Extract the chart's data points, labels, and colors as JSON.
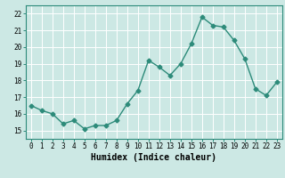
{
  "x": [
    0,
    1,
    2,
    3,
    4,
    5,
    6,
    7,
    8,
    9,
    10,
    11,
    12,
    13,
    14,
    15,
    16,
    17,
    18,
    19,
    20,
    21,
    22,
    23
  ],
  "y": [
    16.5,
    16.2,
    16.0,
    15.4,
    15.6,
    15.1,
    15.3,
    15.3,
    15.6,
    16.6,
    17.4,
    19.2,
    18.8,
    18.3,
    19.0,
    20.2,
    21.8,
    21.3,
    21.2,
    20.4,
    19.3,
    17.5,
    17.1,
    17.9
  ],
  "line_color": "#2d8b7a",
  "marker": "D",
  "markersize": 2.5,
  "linewidth": 1.0,
  "bg_color": "#cce8e4",
  "grid_color": "#ffffff",
  "xlabel": "Humidex (Indice chaleur)",
  "ylim": [
    14.5,
    22.5
  ],
  "xlim": [
    -0.5,
    23.5
  ],
  "yticks": [
    15,
    16,
    17,
    18,
    19,
    20,
    21,
    22
  ],
  "xticks": [
    0,
    1,
    2,
    3,
    4,
    5,
    6,
    7,
    8,
    9,
    10,
    11,
    12,
    13,
    14,
    15,
    16,
    17,
    18,
    19,
    20,
    21,
    22,
    23
  ],
  "tick_fontsize": 5.5,
  "label_fontsize": 7.0,
  "spine_color": "#2d8b7a"
}
